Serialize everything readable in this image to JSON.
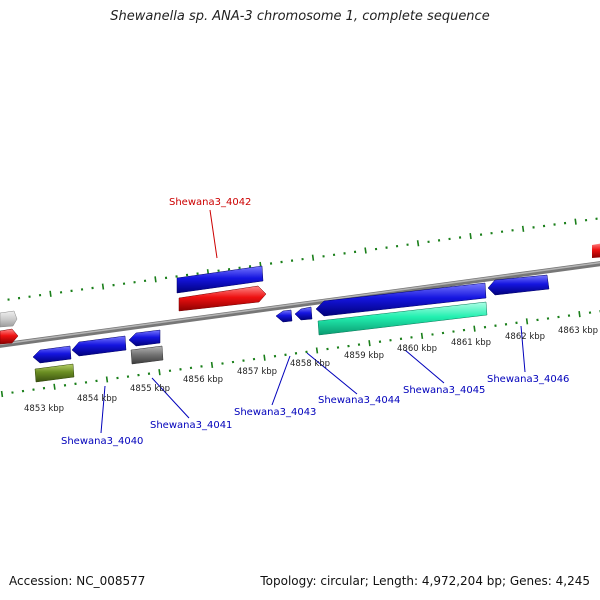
{
  "title": "Shewanella sp. ANA-3 chromosome 1, complete sequence",
  "footer": {
    "accession": "Accession: NC_008577",
    "summary": "Topology: circular; Length: 4,972,204 bp; Genes: 4,245"
  },
  "colors": {
    "backbone": "#8a8a8a",
    "tick": "#1a7f1a",
    "scale_label": "#222222",
    "highlight_label": "#cc0000",
    "gene_label": "#0000bb",
    "gene_blue": "#1515e0",
    "gene_red": "#ee1111",
    "gene_teal": "#22f0b0",
    "gene_gray": "#777777",
    "gene_light_gray": "#cccccc",
    "gene_olive": "#6b8e23"
  },
  "scale_labels": [
    "4853 kbp",
    "4854 kbp",
    "4855 kbp",
    "4856 kbp",
    "4857 kbp",
    "4858 kbp",
    "4859 kbp",
    "4860 kbp",
    "4861 kbp",
    "4862 kbp",
    "4863 kbp"
  ],
  "gene_labels": [
    {
      "text": "Shewana3_4042",
      "color": "highlight"
    },
    {
      "text": "Shewana3_4040",
      "color": "gene"
    },
    {
      "text": "Shewana3_4041",
      "color": "gene"
    },
    {
      "text": "Shewana3_4043",
      "color": "gene"
    },
    {
      "text": "Shewana3_4044",
      "color": "gene"
    },
    {
      "text": "Shewana3_4045",
      "color": "gene"
    },
    {
      "text": "Shewana3_4046",
      "color": "gene"
    }
  ]
}
